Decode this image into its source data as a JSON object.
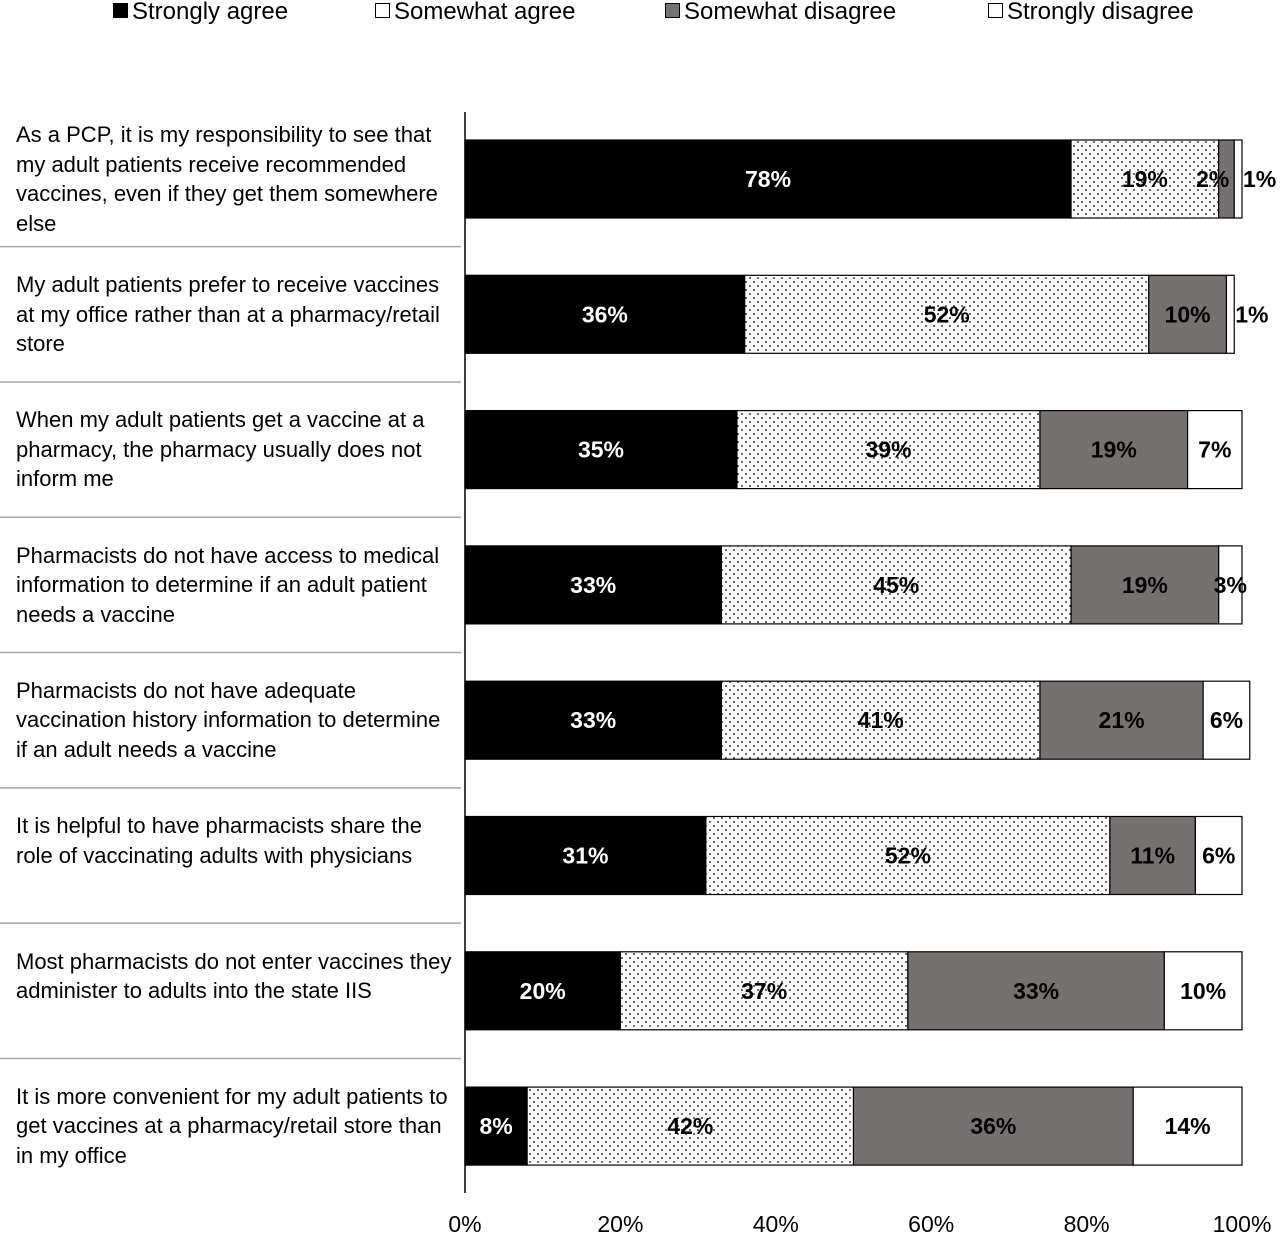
{
  "chart_data": {
    "type": "bar",
    "orientation": "horizontal",
    "stacked": true,
    "categories": [
      "As a PCP, it is my responsibility to see that my adult patients receive recommended vaccines, even if they get them somewhere else",
      "My adult patients prefer to receive vaccines at my office rather than at a pharmacy/retail store",
      "When my adult patients get a vaccine at a pharmacy, the pharmacy usually does not inform me",
      "Pharmacists do not have access to medical information to determine if an adult patient needs a vaccine",
      "Pharmacists do not have adequate vaccination history information to determine if an adult needs a vaccine",
      "It is helpful to have pharmacists share the role of vaccinating adults with physicians",
      "Most pharmacists do not enter vaccines they administer to adults into the state IIS",
      "It is more convenient for my adult patients to get vaccines at a pharmacy/retail store than in my office"
    ],
    "series": [
      {
        "name": "Strongly agree",
        "color": "#000000",
        "pattern": "solid",
        "values": [
          78,
          36,
          35,
          33,
          33,
          31,
          20,
          8
        ]
      },
      {
        "name": "Somewhat agree",
        "color": "#ffffff",
        "pattern": "dots",
        "values": [
          19,
          52,
          39,
          45,
          41,
          52,
          37,
          42
        ]
      },
      {
        "name": "Somewhat disagree",
        "color": "#767171",
        "pattern": "solid",
        "values": [
          2,
          10,
          19,
          19,
          21,
          11,
          33,
          36
        ]
      },
      {
        "name": "Strongly disagree",
        "color": "#ffffff",
        "pattern": "solid",
        "values": [
          1,
          1,
          7,
          3,
          6,
          6,
          10,
          14
        ]
      }
    ],
    "data_labels": [
      [
        "78%",
        "19%",
        "2%",
        "1%"
      ],
      [
        "36%",
        "52%",
        "10%",
        "1%"
      ],
      [
        "35%",
        "39%",
        "19%",
        "7%"
      ],
      [
        "33%",
        "45%",
        "19%",
        "3%"
      ],
      [
        "33%",
        "41%",
        "21%",
        "6%"
      ],
      [
        "31%",
        "52%",
        "11%",
        "6%"
      ],
      [
        "20%",
        "37%",
        "33%",
        "10%"
      ],
      [
        "8%",
        "42%",
        "36%",
        "14%"
      ]
    ],
    "xticks": [
      "0%",
      "20%",
      "40%",
      "60%",
      "80%",
      "100%"
    ],
    "xlim": [
      0,
      100
    ],
    "legend_position": "top",
    "grid": false
  }
}
